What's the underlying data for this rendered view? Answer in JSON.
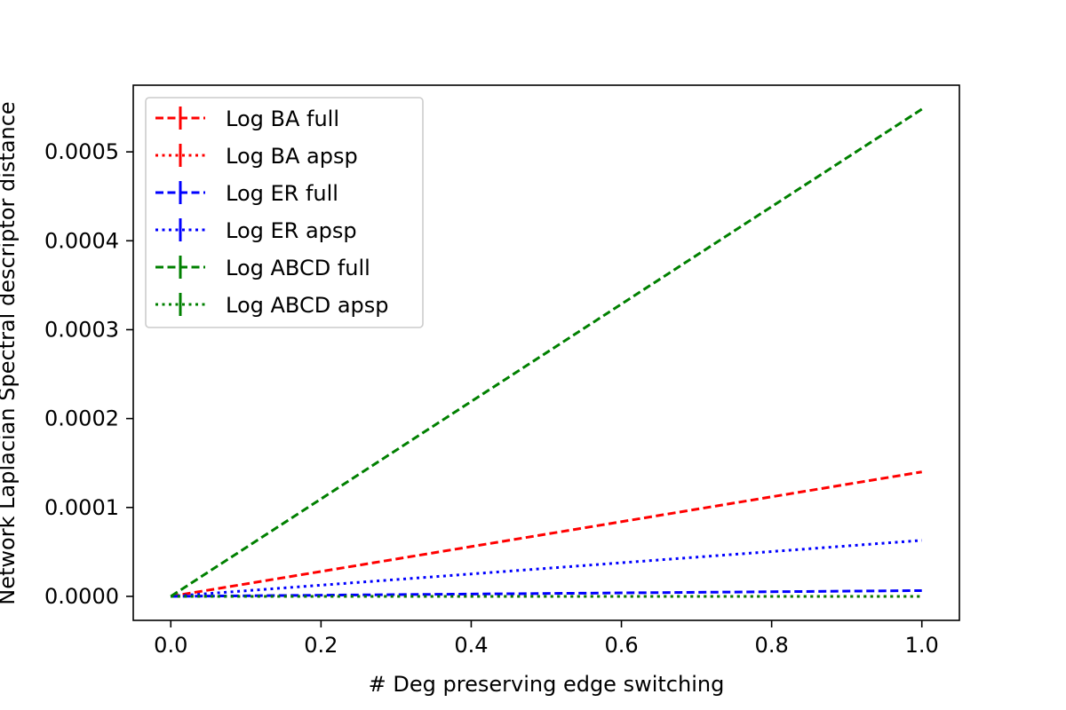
{
  "chart_data": {
    "type": "line",
    "title": "",
    "xlabel": "# Deg preserving edge switching",
    "ylabel": "Network Laplacian Spectral descriptor distance",
    "xlim": [
      -0.05,
      1.05
    ],
    "ylim": [
      -2.7e-05,
      0.000575
    ],
    "x_ticks": [
      0.0,
      0.2,
      0.4,
      0.6,
      0.8,
      1.0
    ],
    "x_tick_labels": [
      "0.0",
      "0.2",
      "0.4",
      "0.6",
      "0.8",
      "1.0"
    ],
    "y_ticks": [
      0.0,
      0.0001,
      0.0002,
      0.0003,
      0.0004,
      0.0005
    ],
    "y_tick_labels": [
      "0.0000",
      "0.0001",
      "0.0002",
      "0.0003",
      "0.0004",
      "0.0005"
    ],
    "grid": false,
    "legend_position": "top-left",
    "series": [
      {
        "name": "Log BA full",
        "color": "#ff0000",
        "dash": "dashed",
        "x": [
          0.0,
          1.0
        ],
        "y": [
          0.0,
          0.00014
        ]
      },
      {
        "name": "Log BA apsp",
        "color": "#ff0000",
        "dash": "dotted",
        "x": [
          0.0,
          1.0
        ],
        "y": [
          0.0,
          0.0
        ]
      },
      {
        "name": "Log ER full",
        "color": "#0000ff",
        "dash": "dashed",
        "x": [
          0.0,
          1.0
        ],
        "y": [
          0.0,
          6.5e-06
        ]
      },
      {
        "name": "Log ER apsp",
        "color": "#0000ff",
        "dash": "dotted",
        "x": [
          0.0,
          1.0
        ],
        "y": [
          0.0,
          6.3e-05
        ]
      },
      {
        "name": "Log ABCD full",
        "color": "#008000",
        "dash": "dashed",
        "x": [
          0.0,
          1.0
        ],
        "y": [
          0.0,
          0.000548
        ]
      },
      {
        "name": "Log ABCD apsp",
        "color": "#008000",
        "dash": "dotted",
        "x": [
          0.0,
          1.0
        ],
        "y": [
          0.0,
          0.0
        ]
      }
    ]
  }
}
